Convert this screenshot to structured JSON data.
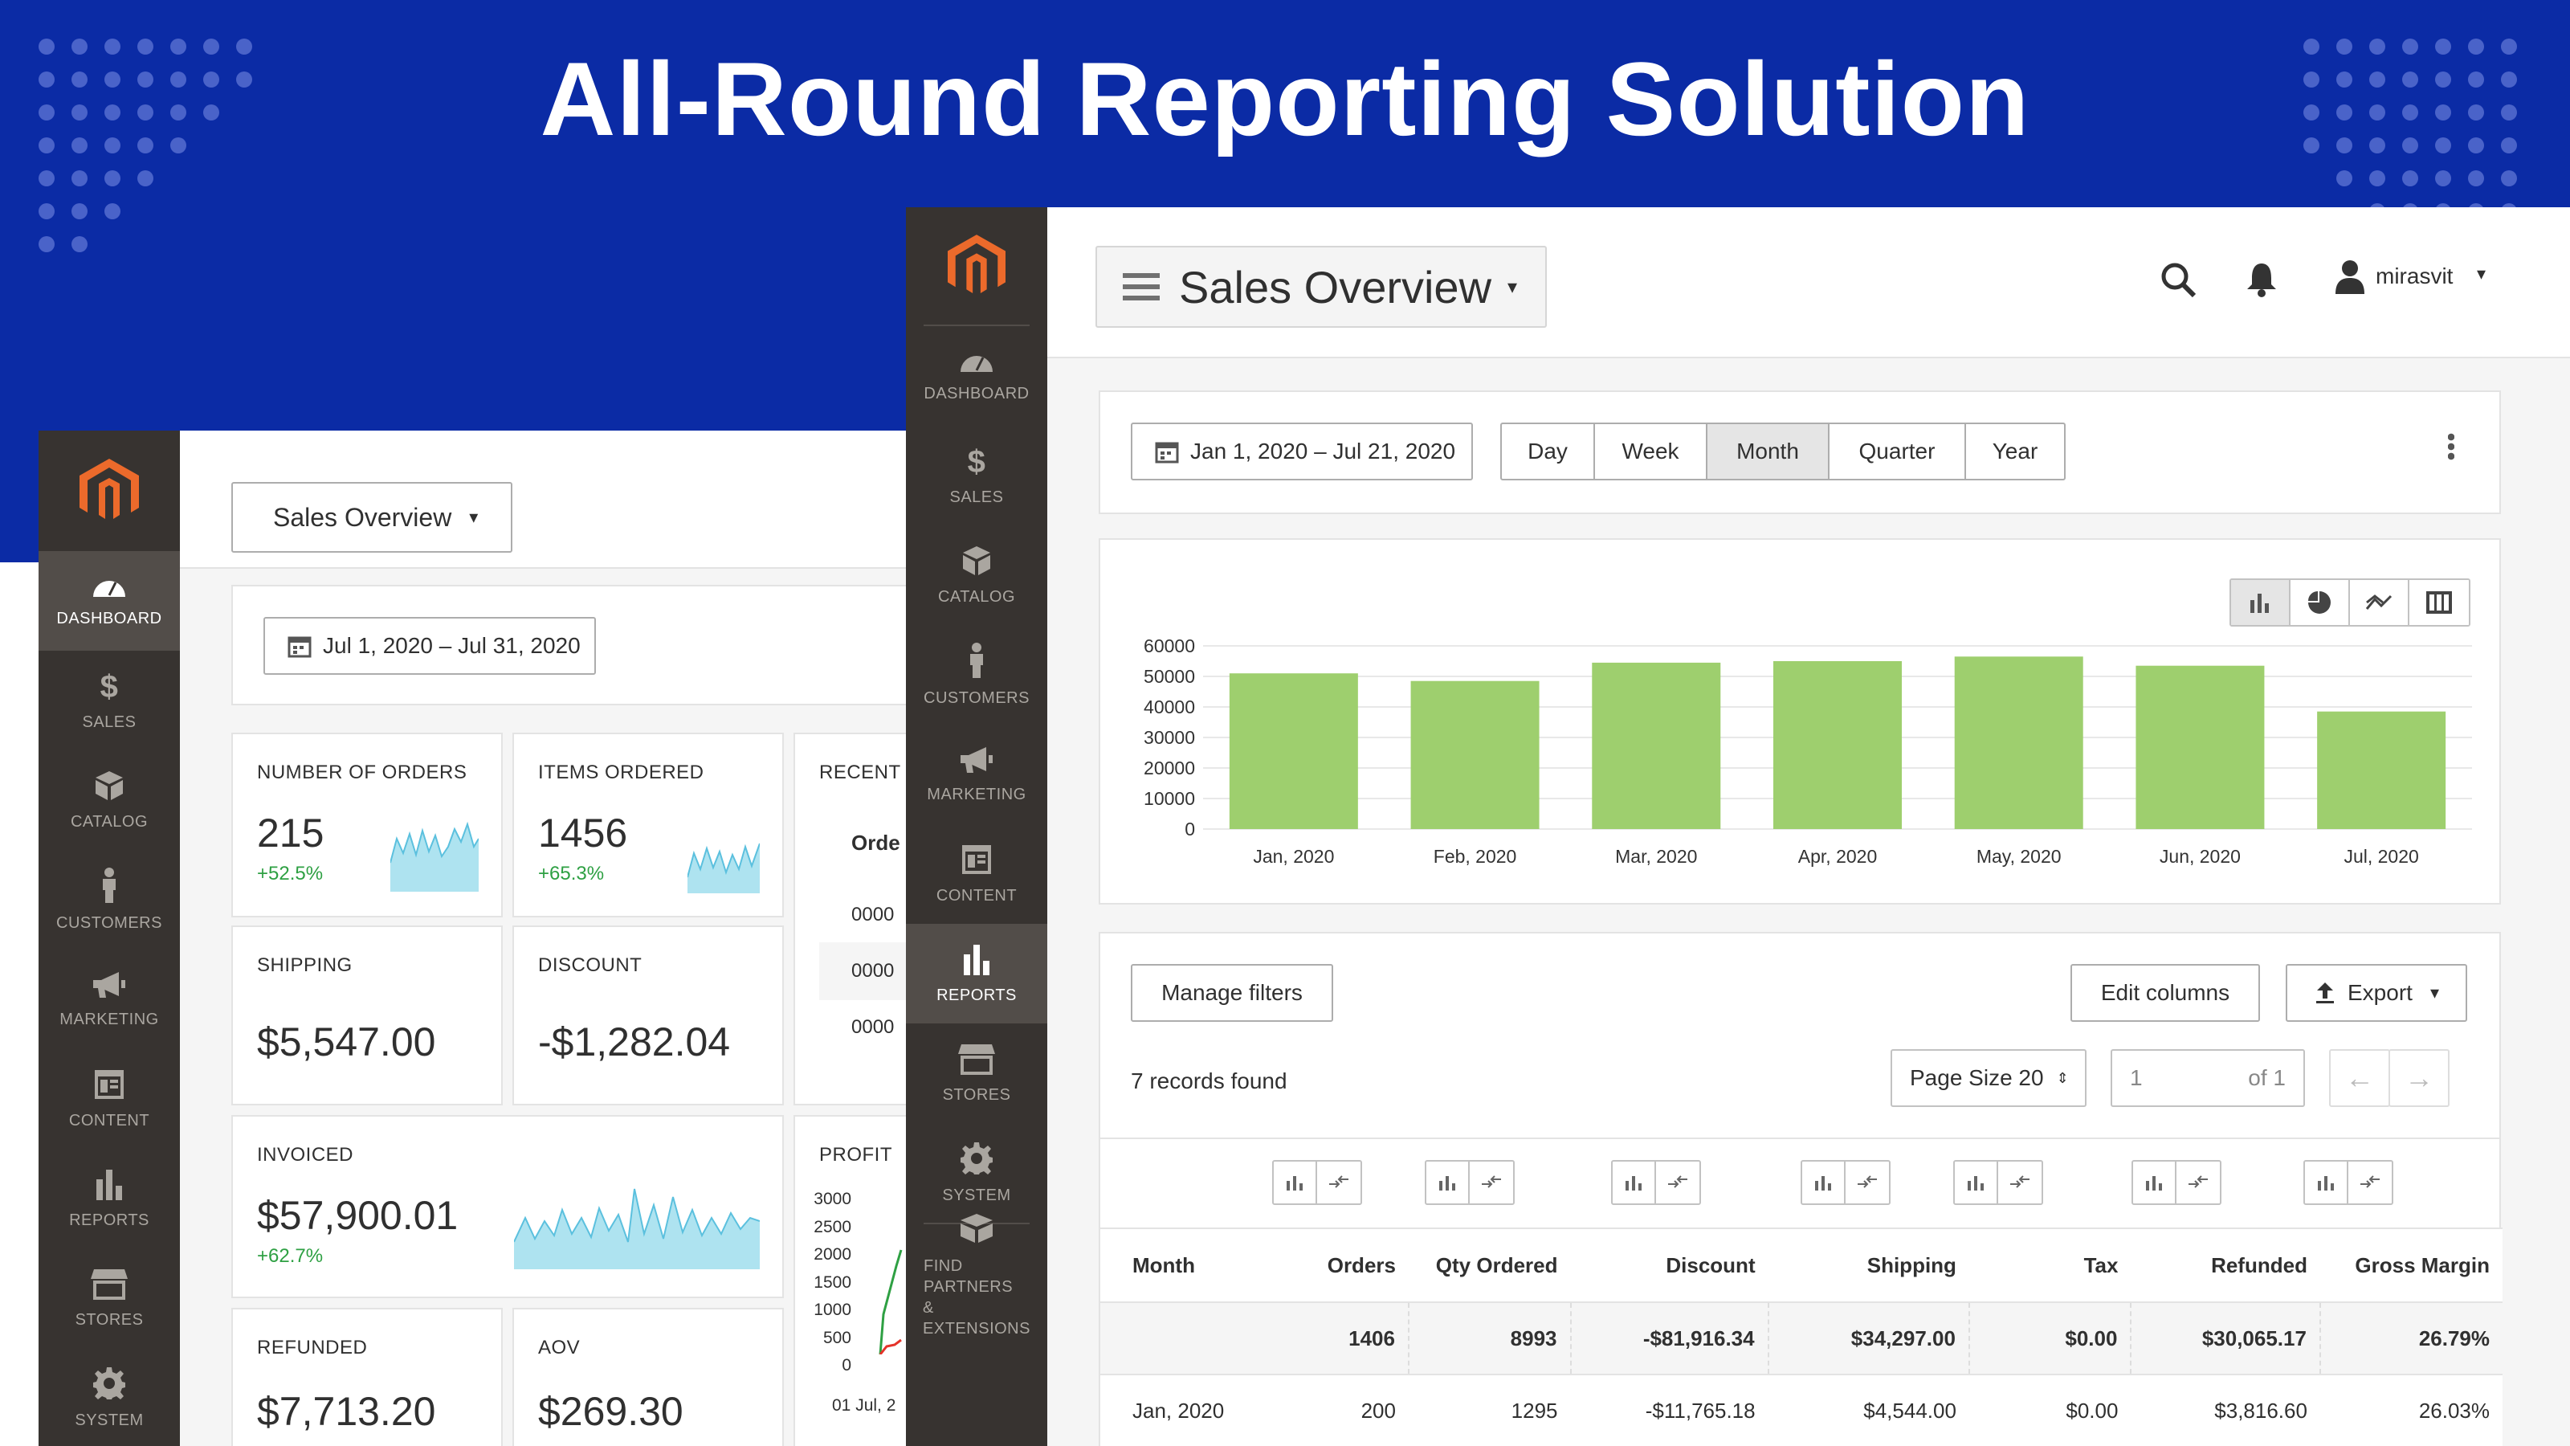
{
  "headline": "All-Round Reporting Solution",
  "nav": [
    {
      "key": "dashboard",
      "label": "DASHBOARD",
      "icon": "gauge-icon"
    },
    {
      "key": "sales",
      "label": "SALES",
      "icon": "dollar-icon"
    },
    {
      "key": "catalog",
      "label": "CATALOG",
      "icon": "box-icon"
    },
    {
      "key": "customers",
      "label": "CUSTOMERS",
      "icon": "person-icon"
    },
    {
      "key": "marketing",
      "label": "MARKETING",
      "icon": "megaphone-icon"
    },
    {
      "key": "content",
      "label": "CONTENT",
      "icon": "layout-icon"
    },
    {
      "key": "reports",
      "label": "REPORTS",
      "icon": "bar-chart-icon"
    },
    {
      "key": "stores",
      "label": "STORES",
      "icon": "store-icon"
    },
    {
      "key": "system",
      "label": "SYSTEM",
      "icon": "gear-icon"
    },
    {
      "key": "partners",
      "label": "FIND PARTNERS & EXTENSIONS",
      "label_lines": [
        "FIND PARTNERS",
        "& EXTENSIONS"
      ],
      "icon": "extensions-box-icon"
    }
  ],
  "back": {
    "title": "Sales Overview",
    "date_range": "Jul 1, 2020 – Jul 31, 2020",
    "active_nav": "DASHBOARD",
    "cards": {
      "orders": {
        "label": "NUMBER OF ORDERS",
        "value": "215",
        "delta": "+52.5%"
      },
      "items": {
        "label": "ITEMS ORDERED",
        "value": "1456",
        "delta": "+65.3%"
      },
      "recent": {
        "label": "RECENT O",
        "col": "Orde",
        "rows": [
          "0000",
          "0000",
          "0000"
        ]
      },
      "shipping": {
        "label": "SHIPPING",
        "value": "$5,547.00"
      },
      "discount": {
        "label": "DISCOUNT",
        "value": "-$1,282.04"
      },
      "invoiced": {
        "label": "INVOICED",
        "value": "$57,900.01",
        "delta": "+62.7%"
      },
      "profit": {
        "label": "PROFIT",
        "ticks": [
          "3000",
          "2500",
          "2000",
          "1500",
          "1000",
          "500",
          "0"
        ],
        "xtick": "01 Jul, 2"
      },
      "refunded": {
        "label": "REFUNDED",
        "value": "$7,713.20"
      },
      "aov": {
        "label": "AOV",
        "value": "$269.30"
      }
    }
  },
  "front": {
    "title": "Sales Overview",
    "user": "mirasvit",
    "date_range": "Jan 1, 2020 – Jul 21, 2020",
    "periods": [
      "Day",
      "Week",
      "Month",
      "Quarter",
      "Year"
    ],
    "active_period": "Month",
    "active_nav": "REPORTS",
    "buttons": {
      "manage": "Manage filters",
      "edit": "Edit columns",
      "export": "Export"
    },
    "records": "7 records found",
    "page_size": "Page Size 20",
    "page_input": "1",
    "page_of": "of 1",
    "columns": [
      "Month",
      "Orders",
      "Qty Ordered",
      "Discount",
      "Shipping",
      "Tax",
      "Refunded",
      "Gross Margin"
    ],
    "totals": [
      "",
      "1406",
      "8993",
      "-$81,916.34",
      "$34,297.00",
      "$0.00",
      "$30,065.17",
      "26.79%"
    ],
    "rows": [
      [
        "Jan, 2020",
        "200",
        "1295",
        "-$11,765.18",
        "$4,544.00",
        "$0.00",
        "$3,816.60",
        "26.03%"
      ]
    ]
  },
  "chart_data": {
    "type": "bar",
    "categories": [
      "Jan, 2020",
      "Feb, 2020",
      "Mar, 2020",
      "Apr, 2020",
      "May, 2020",
      "Jun, 2020",
      "Jul, 2020"
    ],
    "values": [
      51000,
      48500,
      54500,
      55000,
      56500,
      53500,
      38500
    ],
    "yticks": [
      "60000",
      "50000",
      "40000",
      "30000",
      "20000",
      "10000",
      "0"
    ],
    "ylim": [
      0,
      60000
    ],
    "color": "#9ecf6e",
    "grid": true
  }
}
